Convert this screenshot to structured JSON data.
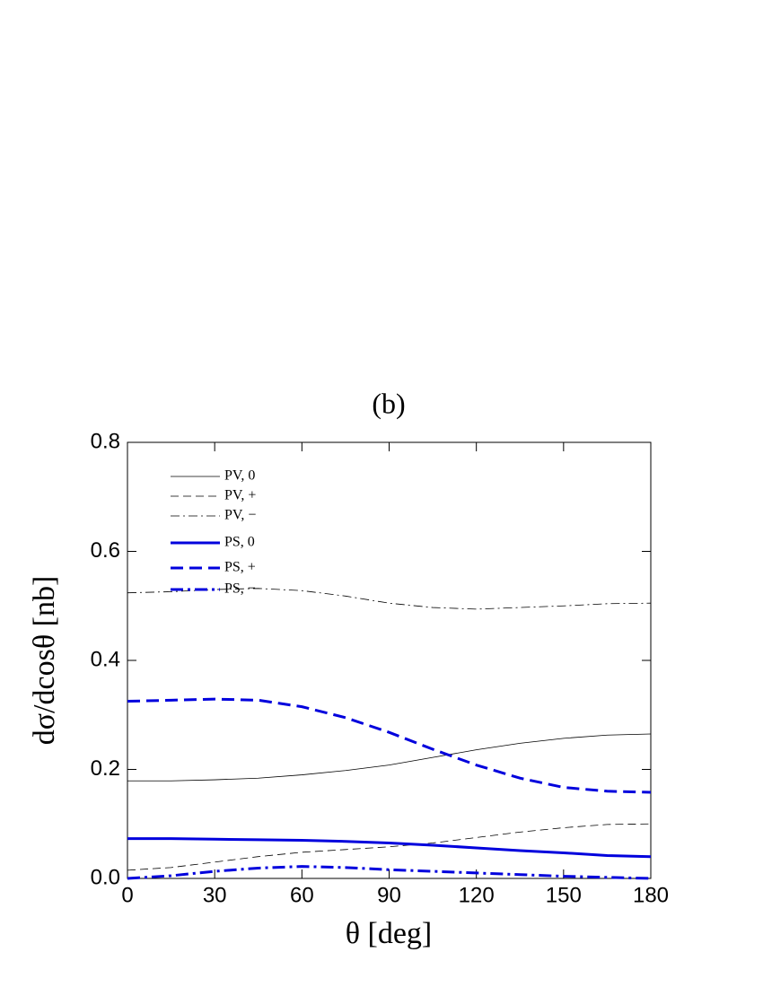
{
  "chart_data": {
    "type": "line",
    "title": "(b)",
    "x_label": "θ [deg]",
    "y_label": "dσ/dcosθ [nb]",
    "x": [
      0,
      15,
      30,
      45,
      60,
      75,
      90,
      105,
      120,
      135,
      150,
      165,
      180
    ],
    "series": [
      {
        "name": "PV, 0",
        "color": "#000000",
        "dash": "solid",
        "linewidth": 0.8,
        "values": [
          0.179,
          0.179,
          0.181,
          0.184,
          0.19,
          0.198,
          0.208,
          0.222,
          0.236,
          0.248,
          0.257,
          0.263,
          0.265
        ]
      },
      {
        "name": "PV, +",
        "color": "#000000",
        "dash": "dashed",
        "linewidth": 0.8,
        "values": [
          0.015,
          0.02,
          0.03,
          0.04,
          0.048,
          0.053,
          0.058,
          0.065,
          0.075,
          0.085,
          0.093,
          0.099,
          0.1
        ]
      },
      {
        "name": "PV, −",
        "color": "#000000",
        "dash": "dashdot",
        "linewidth": 0.8,
        "values": [
          0.524,
          0.526,
          0.53,
          0.532,
          0.528,
          0.518,
          0.505,
          0.497,
          0.494,
          0.497,
          0.5,
          0.504,
          0.505
        ]
      },
      {
        "name": "PS, 0",
        "color": "#0000dd",
        "dash": "solid",
        "linewidth": 3,
        "values": [
          0.073,
          0.073,
          0.072,
          0.071,
          0.07,
          0.068,
          0.065,
          0.061,
          0.056,
          0.051,
          0.047,
          0.042,
          0.04
        ]
      },
      {
        "name": "PS, +",
        "color": "#0000dd",
        "dash": "dashed",
        "linewidth": 3,
        "values": [
          0.325,
          0.327,
          0.329,
          0.327,
          0.315,
          0.295,
          0.268,
          0.237,
          0.208,
          0.184,
          0.167,
          0.16,
          0.158
        ]
      },
      {
        "name": "PS, −",
        "color": "#0000dd",
        "dash": "dashdot",
        "linewidth": 3,
        "values": [
          0.0,
          0.005,
          0.013,
          0.019,
          0.022,
          0.02,
          0.016,
          0.013,
          0.01,
          0.007,
          0.004,
          0.002,
          0.0
        ]
      }
    ],
    "xlim": [
      0,
      180
    ],
    "xticks": [
      0,
      30,
      60,
      90,
      120,
      150,
      180
    ],
    "ylim": [
      0,
      0.8
    ],
    "yticks": [
      {
        "value": 0,
        "label": "0.0"
      },
      0.2,
      0.4,
      0.6,
      0.8
    ],
    "legend": "upper left",
    "grid": false
  }
}
